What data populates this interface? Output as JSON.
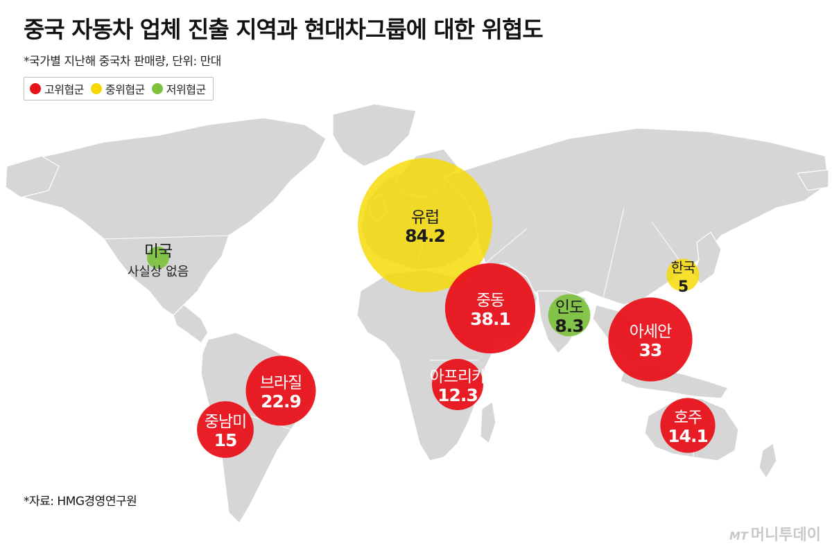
{
  "title": "중국 자동차 업체 진출 지역과 현대차그룹에 대한 위협도",
  "subtitle": "*국가별 지난해 중국차 판매량, 단위: 만대",
  "legend": [
    {
      "label": "고위협군",
      "color": "#e8121a"
    },
    {
      "label": "중위협군",
      "color": "#f6d900"
    },
    {
      "label": "저위협군",
      "color": "#7fc241"
    }
  ],
  "source": "*자료: HMG경영연구원",
  "credit": {
    "mark": "MT",
    "name": "머니투데이"
  },
  "colors": {
    "land": "#d6d6d6",
    "border": "#ffffff",
    "label_dark": "#1a1a1a",
    "label_light": "#ffffff"
  },
  "chart_data": {
    "type": "bubble-map",
    "unit": "만대",
    "regions": [
      {
        "name": "유럽",
        "value": 84.2,
        "tier": "중위협군"
      },
      {
        "name": "중동",
        "value": 38.1,
        "tier": "고위협군"
      },
      {
        "name": "아세안",
        "value": 33,
        "tier": "고위협군"
      },
      {
        "name": "브라질",
        "value": 22.9,
        "tier": "고위협군"
      },
      {
        "name": "중남미",
        "value": 15,
        "tier": "고위협군"
      },
      {
        "name": "호주",
        "value": 14.1,
        "tier": "고위협군"
      },
      {
        "name": "아프리카",
        "value": 12.3,
        "tier": "고위협군"
      },
      {
        "name": "인도",
        "value": 8.3,
        "tier": "저위협군"
      },
      {
        "name": "한국",
        "value": 5,
        "tier": "중위협군"
      },
      {
        "name": "미국",
        "value": null,
        "note": "사실상 없음",
        "tier": "저위협군"
      }
    ]
  }
}
